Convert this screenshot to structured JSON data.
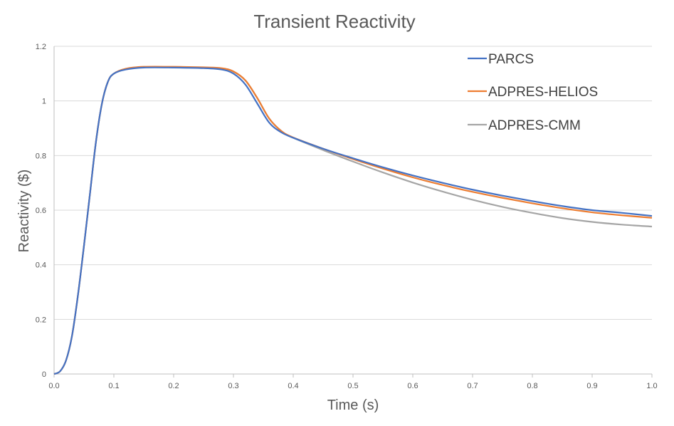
{
  "chart_data": {
    "type": "line",
    "title": "Transient Reactivity",
    "xlabel": "Time (s)",
    "ylabel": "Reactivity ($)",
    "xlim": [
      0.0,
      1.0
    ],
    "ylim": [
      0,
      1.2
    ],
    "x_ticks": [
      "0.0",
      "0.1",
      "0.2",
      "0.3",
      "0.4",
      "0.5",
      "0.6",
      "0.7",
      "0.8",
      "0.9",
      "1.0"
    ],
    "y_ticks": [
      "0",
      "0.2",
      "0.4",
      "0.6",
      "0.8",
      "1",
      "1.2"
    ],
    "grid": "horizontal",
    "legend_position": "top-right",
    "series": [
      {
        "name": "PARCS",
        "color": "#4472c4",
        "x": [
          0,
          0.01,
          0.02,
          0.03,
          0.04,
          0.05,
          0.06,
          0.07,
          0.08,
          0.09,
          0.1,
          0.12,
          0.15,
          0.2,
          0.25,
          0.28,
          0.3,
          0.32,
          0.34,
          0.36,
          0.38,
          0.4,
          0.45,
          0.5,
          0.55,
          0.6,
          0.65,
          0.7,
          0.75,
          0.8,
          0.85,
          0.9,
          0.95,
          1.0
        ],
        "y": [
          0,
          0.01,
          0.05,
          0.14,
          0.29,
          0.47,
          0.66,
          0.85,
          0.99,
          1.07,
          1.1,
          1.115,
          1.122,
          1.122,
          1.12,
          1.115,
          1.1,
          1.06,
          0.99,
          0.92,
          0.885,
          0.865,
          0.825,
          0.79,
          0.757,
          0.727,
          0.7,
          0.675,
          0.653,
          0.633,
          0.615,
          0.6,
          0.59,
          0.579
        ]
      },
      {
        "name": "ADPRES-HELIOS",
        "color": "#ed7d31",
        "x": [
          0,
          0.01,
          0.02,
          0.03,
          0.04,
          0.05,
          0.06,
          0.07,
          0.08,
          0.09,
          0.1,
          0.12,
          0.15,
          0.2,
          0.25,
          0.28,
          0.3,
          0.32,
          0.34,
          0.36,
          0.38,
          0.4,
          0.45,
          0.5,
          0.55,
          0.6,
          0.65,
          0.7,
          0.75,
          0.8,
          0.85,
          0.9,
          0.95,
          1.0
        ],
        "y": [
          0,
          0.01,
          0.05,
          0.14,
          0.29,
          0.47,
          0.66,
          0.85,
          0.99,
          1.07,
          1.1,
          1.118,
          1.125,
          1.125,
          1.123,
          1.12,
          1.108,
          1.075,
          1.01,
          0.935,
          0.89,
          0.866,
          0.825,
          0.787,
          0.752,
          0.72,
          0.692,
          0.667,
          0.645,
          0.625,
          0.607,
          0.592,
          0.581,
          0.572
        ]
      },
      {
        "name": "ADPRES-CMM",
        "color": "#a5a5a5",
        "x": [
          0,
          0.01,
          0.02,
          0.03,
          0.04,
          0.05,
          0.06,
          0.07,
          0.08,
          0.09,
          0.1,
          0.12,
          0.15,
          0.2,
          0.25,
          0.28,
          0.3,
          0.32,
          0.34,
          0.36,
          0.38,
          0.4,
          0.45,
          0.5,
          0.55,
          0.6,
          0.65,
          0.7,
          0.75,
          0.8,
          0.85,
          0.9,
          0.95,
          1.0
        ],
        "y": [
          0,
          0.01,
          0.05,
          0.14,
          0.29,
          0.47,
          0.66,
          0.85,
          0.99,
          1.07,
          1.1,
          1.117,
          1.124,
          1.124,
          1.122,
          1.119,
          1.107,
          1.075,
          1.01,
          0.935,
          0.89,
          0.865,
          0.82,
          0.778,
          0.738,
          0.701,
          0.668,
          0.638,
          0.612,
          0.59,
          0.571,
          0.557,
          0.547,
          0.54
        ]
      }
    ]
  }
}
